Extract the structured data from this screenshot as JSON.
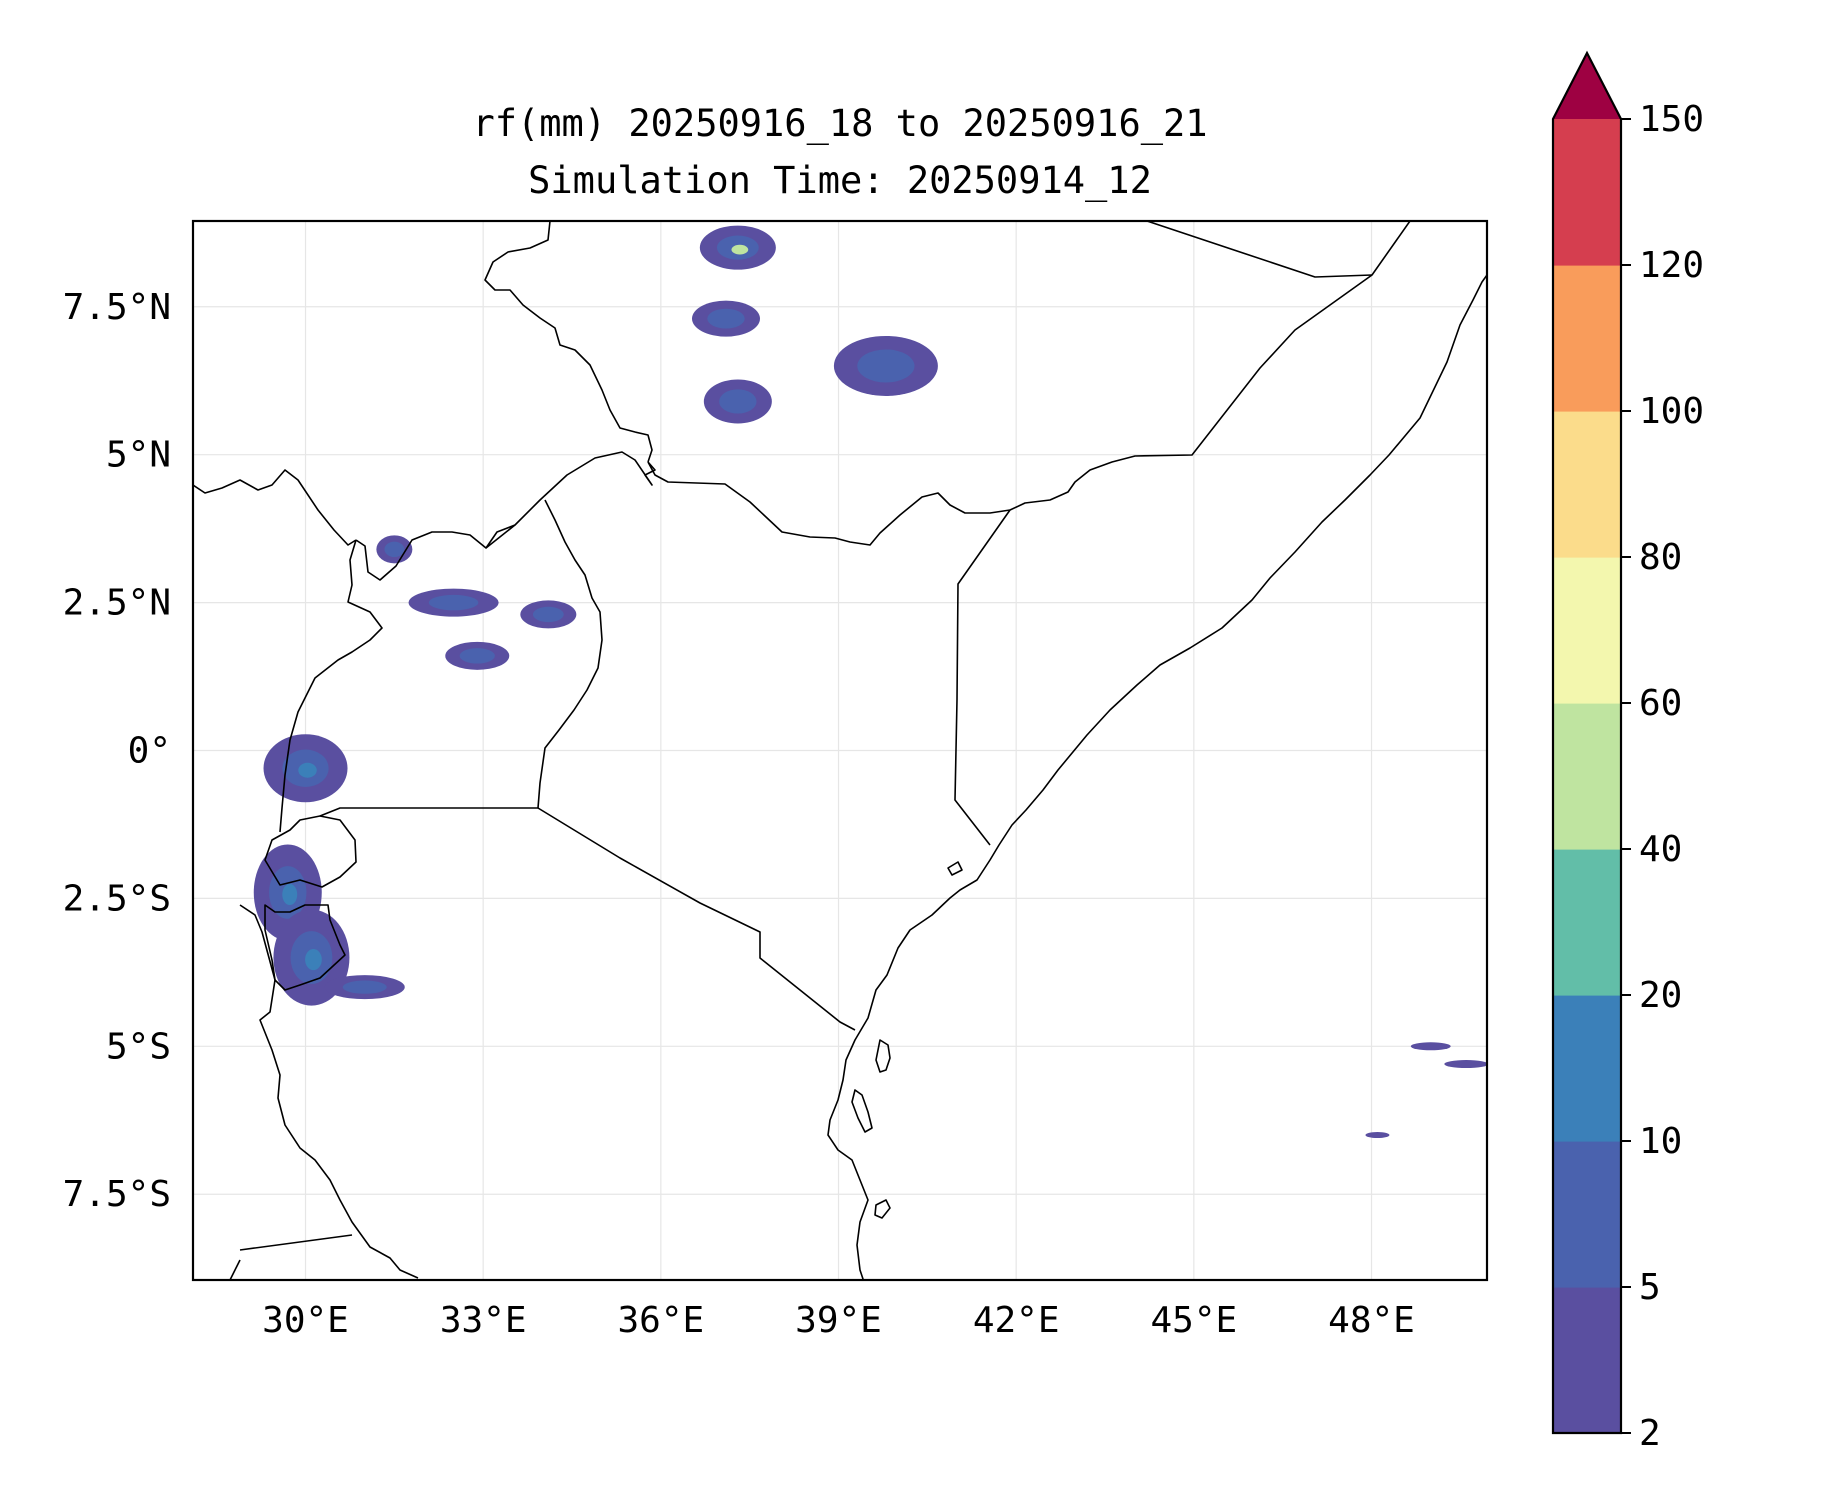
{
  "title": {
    "line1": "rf(mm) 20250916_18 to 20250916_21",
    "line2": "Simulation Time: 20250914_12"
  },
  "map": {
    "extent": {
      "lon_min": 28.1,
      "lon_max": 49.95,
      "lat_min": -8.95,
      "lat_max": 8.95
    },
    "lat_ticks": [
      {
        "value": 7.5,
        "label": "7.5°N"
      },
      {
        "value": 5,
        "label": "5°N"
      },
      {
        "value": 2.5,
        "label": "2.5°N"
      },
      {
        "value": 0,
        "label": "0°"
      },
      {
        "value": -2.5,
        "label": "2.5°S"
      },
      {
        "value": -5,
        "label": "5°S"
      },
      {
        "value": -7.5,
        "label": "7.5°S"
      }
    ],
    "lon_ticks": [
      {
        "value": 30,
        "label": "30°E"
      },
      {
        "value": 33,
        "label": "33°E"
      },
      {
        "value": 36,
        "label": "36°E"
      },
      {
        "value": 39,
        "label": "39°E"
      },
      {
        "value": 42,
        "label": "42°E"
      },
      {
        "value": 45,
        "label": "45°E"
      },
      {
        "value": 48,
        "label": "48°E"
      }
    ],
    "gridlines": true
  },
  "colorbar": {
    "levels": [
      "2",
      "5",
      "10",
      "20",
      "40",
      "60",
      "80",
      "100",
      "120",
      "150"
    ],
    "colors": [
      "#5a4fa0",
      "#4a62ae",
      "#3b80b9",
      "#62bea8",
      "#bfe4a0",
      "#f3f7ae",
      "#fbdc8b",
      "#f99c5b",
      "#d53e4f"
    ],
    "extend_color": "#9e0142",
    "extend": "max"
  },
  "chart_data": {
    "type": "heatmap",
    "variable": "rf(mm)",
    "rain_areas": [
      {
        "lon": 37.3,
        "lat": 8.5,
        "max_class": "40-60"
      },
      {
        "lon": 39.8,
        "lat": 6.5,
        "max_class": "5-10"
      },
      {
        "lon": 37.3,
        "lat": 5.9,
        "max_class": "5-10"
      },
      {
        "lon": 37.1,
        "lat": 7.3,
        "max_class": "5-10"
      },
      {
        "lon": 31.5,
        "lat": 3.4,
        "max_class": "5-10"
      },
      {
        "lon": 32.5,
        "lat": 2.5,
        "max_class": "5-10"
      },
      {
        "lon": 34.1,
        "lat": 2.3,
        "max_class": "5-10"
      },
      {
        "lon": 32.9,
        "lat": 1.6,
        "max_class": "5-10"
      },
      {
        "lon": 30.0,
        "lat": -0.3,
        "max_class": "10-20"
      },
      {
        "lon": 29.7,
        "lat": -2.4,
        "max_class": "10-20"
      },
      {
        "lon": 30.1,
        "lat": -3.5,
        "max_class": "10-20"
      },
      {
        "lon": 31.0,
        "lat": -4.0,
        "max_class": "5-10"
      },
      {
        "lon": 49.0,
        "lat": -5.0,
        "max_class": "2-5"
      },
      {
        "lon": 49.6,
        "lat": -5.3,
        "max_class": "2-5"
      },
      {
        "lon": 48.1,
        "lat": -6.5,
        "max_class": "2-5"
      }
    ]
  }
}
